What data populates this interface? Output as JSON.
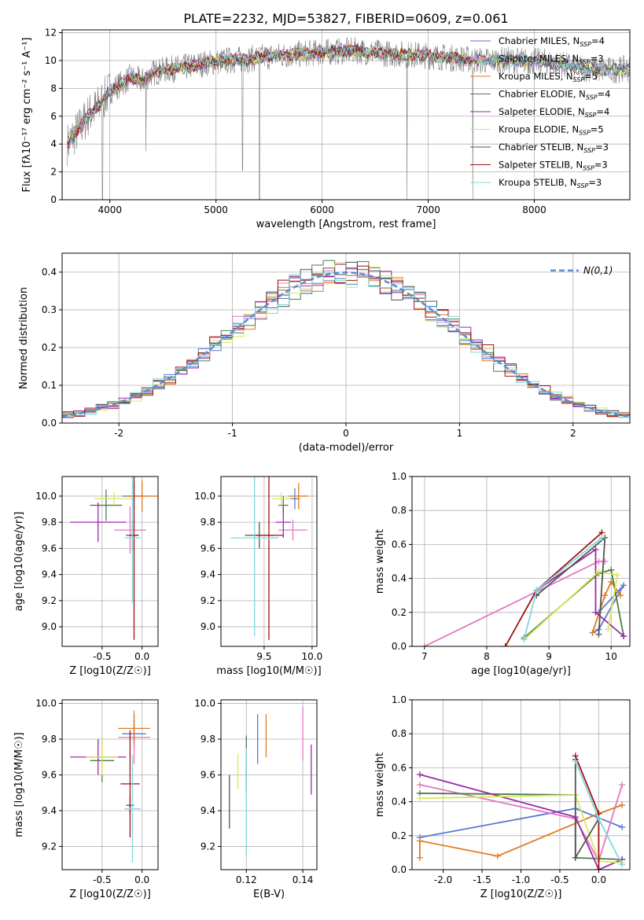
{
  "title": "PLATE=2232, MJD=53827, FIBERID=0609, z=0.061",
  "models": [
    {
      "name": "Chabrier MILES, N_SSP=4",
      "color": "#5b78d1"
    },
    {
      "name": "Salpeter MILES, N_SSP=3",
      "color": "#e377c2"
    },
    {
      "name": "Kroupa MILES, N_SSP=5",
      "color": "#e07b20"
    },
    {
      "name": "Chabrier ELODIE, N_SSP=4",
      "color": "#4d7a4d"
    },
    {
      "name": "Salpeter ELODIE, N_SSP=4",
      "color": "#9b2aa8"
    },
    {
      "name": "Kroupa ELODIE, N_SSP=5",
      "color": "#d8e85a"
    },
    {
      "name": "Chabrier STELIB, N_SSP=3",
      "color": "#555555"
    },
    {
      "name": "Salpeter STELIB, N_SSP=3",
      "color": "#a01010"
    },
    {
      "name": "Kroupa STELIB, N_SSP=3",
      "color": "#7fd8dc"
    }
  ],
  "chart_data": [
    {
      "id": "spectrum",
      "type": "line",
      "xlabel": "wavelength [Angstrom, rest frame]",
      "ylabel": "Flux [fλ10⁻¹⁷ erg cm⁻² s⁻¹ A⁻¹]",
      "xlim": [
        3550,
        8900
      ],
      "ylim": [
        0,
        12.2
      ],
      "xticks": [
        4000,
        5000,
        6000,
        7000,
        8000
      ],
      "yticks": [
        0,
        2,
        4,
        6,
        8,
        10,
        12
      ],
      "data_color": "#808080",
      "continuum": [
        [
          3600,
          4.0
        ],
        [
          3700,
          5.0
        ],
        [
          3800,
          6.1
        ],
        [
          3900,
          6.8
        ],
        [
          4000,
          7.8
        ],
        [
          4100,
          8.3
        ],
        [
          4200,
          8.8
        ],
        [
          4300,
          8.5
        ],
        [
          4400,
          9.1
        ],
        [
          4500,
          9.3
        ],
        [
          4700,
          9.5
        ],
        [
          4900,
          9.8
        ],
        [
          5100,
          10.0
        ],
        [
          5300,
          10.1
        ],
        [
          5500,
          10.3
        ],
        [
          5700,
          10.4
        ],
        [
          6000,
          10.6
        ],
        [
          6300,
          10.7
        ],
        [
          6600,
          10.5
        ],
        [
          6900,
          10.4
        ],
        [
          7200,
          10.2
        ],
        [
          7500,
          10.0
        ],
        [
          7800,
          10.0
        ],
        [
          8100,
          9.9
        ],
        [
          8400,
          9.5
        ],
        [
          8700,
          9.3
        ],
        [
          8900,
          9.4
        ]
      ],
      "drops": [
        [
          3930,
          0
        ],
        [
          4340,
          3.5
        ],
        [
          5250,
          2.1
        ],
        [
          5410,
          0
        ],
        [
          6800,
          0
        ],
        [
          7420,
          0
        ]
      ]
    },
    {
      "id": "residuals",
      "type": "area",
      "xlabel": "(data-model)/error",
      "ylabel": "Normed distribution",
      "xlim": [
        -2.5,
        2.5
      ],
      "ylim": [
        0,
        0.45
      ],
      "xticks": [
        -2,
        -1,
        0,
        1,
        2
      ],
      "yticks": [
        0,
        0.1,
        0.2,
        0.3,
        0.4
      ],
      "legend": "N(0,1)",
      "legend_location": "upper-right",
      "curve_color": "#5b8ad8",
      "bin_width": 0.1,
      "bin_start": -2.5
    },
    {
      "id": "age-vs-z",
      "type": "scatter",
      "xlabel": "Z [log10(Z/Z☉)]",
      "ylabel": "age [log10(age/yr)]",
      "xlim": [
        -1.0,
        0.2
      ],
      "ylim": [
        8.85,
        10.15
      ],
      "xticks": [
        -0.5,
        0.0
      ],
      "yticks": [
        9.0,
        9.2,
        9.4,
        9.6,
        9.8,
        10.0
      ],
      "points": [
        {
          "m": 0,
          "x": -0.1,
          "y": 10.0,
          "xe": 0.15,
          "ye": 0.1
        },
        {
          "m": 1,
          "x": -0.15,
          "y": 9.74,
          "xe": 0.2,
          "ye": 0.18
        },
        {
          "m": 2,
          "x": 0.0,
          "y": 10.0,
          "xe": 0.2,
          "ye": 0.12
        },
        {
          "m": 3,
          "x": -0.45,
          "y": 9.93,
          "xe": 0.2,
          "ye": 0.12
        },
        {
          "m": 4,
          "x": -0.55,
          "y": 9.8,
          "xe": 0.35,
          "ye": 0.15
        },
        {
          "m": 5,
          "x": -0.35,
          "y": 9.98,
          "xe": 0.25,
          "ye": 0.05
        },
        {
          "m": 6,
          "x": -0.12,
          "y": 9.7,
          "xe": 0.08,
          "ye": 0.12
        },
        {
          "m": 7,
          "x": -0.1,
          "y": 9.7,
          "xe": 0.05,
          "ye": 0.8
        },
        {
          "m": 8,
          "x": -0.12,
          "y": 9.68,
          "xe": 0.1,
          "ye": 0.5
        }
      ]
    },
    {
      "id": "age-vs-mass",
      "type": "scatter",
      "xlabel": "mass [log10(M/M☉)]",
      "ylabel": "",
      "xlim": [
        9.05,
        10.05
      ],
      "ylim": [
        8.85,
        10.15
      ],
      "xticks": [
        9.5,
        10.0
      ],
      "yticks": [
        9.0,
        9.2,
        9.4,
        9.6,
        9.8,
        10.0
      ],
      "points": [
        {
          "m": 0,
          "x": 9.82,
          "y": 9.98,
          "xe": 0.05,
          "ye": 0.08
        },
        {
          "m": 1,
          "x": 9.8,
          "y": 9.74,
          "xe": 0.15,
          "ye": 0.08
        },
        {
          "m": 2,
          "x": 9.86,
          "y": 10.0,
          "xe": 0.1,
          "ye": 0.1
        },
        {
          "m": 3,
          "x": 9.7,
          "y": 9.93,
          "xe": 0.05,
          "ye": 0.07
        },
        {
          "m": 4,
          "x": 9.7,
          "y": 9.8,
          "xe": 0.08,
          "ye": 0.12
        },
        {
          "m": 5,
          "x": 9.68,
          "y": 9.98,
          "xe": 0.1,
          "ye": 0.05
        },
        {
          "m": 6,
          "x": 9.45,
          "y": 9.7,
          "xe": 0.15,
          "ye": 0.1
        },
        {
          "m": 7,
          "x": 9.55,
          "y": 9.7,
          "xe": 0.15,
          "ye": 0.8
        },
        {
          "m": 8,
          "x": 9.4,
          "y": 9.68,
          "xe": 0.25,
          "ye": 0.75
        }
      ]
    },
    {
      "id": "weight-vs-age",
      "type": "line",
      "xlabel": "age [log10(age/yr)]",
      "ylabel": "mass weight",
      "xlim": [
        6.8,
        10.3
      ],
      "ylim": [
        0,
        1
      ],
      "xticks": [
        7,
        8,
        9,
        10
      ],
      "yticks": [
        0,
        0.2,
        0.4,
        0.6,
        0.8,
        1.0
      ],
      "series": [
        {
          "m": 0,
          "pts": [
            [
              9.8,
              0.2
            ],
            [
              10.2,
              0.36
            ],
            [
              9.8,
              0.1
            ],
            [
              9.7,
              0.08
            ]
          ]
        },
        {
          "m": 1,
          "pts": [
            [
              7.0,
              0.0
            ],
            [
              9.8,
              0.5
            ],
            [
              9.9,
              0.5
            ]
          ]
        },
        {
          "m": 2,
          "pts": [
            [
              9.7,
              0.08
            ],
            [
              9.9,
              0.3
            ],
            [
              10.0,
              0.38
            ],
            [
              10.15,
              0.3
            ]
          ]
        },
        {
          "m": 3,
          "pts": [
            [
              8.6,
              0.05
            ],
            [
              9.8,
              0.43
            ],
            [
              10.0,
              0.45
            ],
            [
              10.2,
              0.06
            ]
          ]
        },
        {
          "m": 4,
          "pts": [
            [
              8.8,
              0.33
            ],
            [
              9.75,
              0.57
            ],
            [
              9.75,
              0.2
            ],
            [
              10.2,
              0.06
            ]
          ]
        },
        {
          "m": 5,
          "pts": [
            [
              8.6,
              0.04
            ],
            [
              9.8,
              0.44
            ],
            [
              10.1,
              0.42
            ],
            [
              9.95,
              0.1
            ]
          ]
        },
        {
          "m": 6,
          "pts": [
            [
              9.8,
              0.07
            ],
            [
              9.9,
              0.64
            ],
            [
              8.8,
              0.3
            ]
          ]
        },
        {
          "m": 7,
          "pts": [
            [
              8.3,
              0.0
            ],
            [
              8.8,
              0.33
            ],
            [
              9.85,
              0.67
            ]
          ]
        },
        {
          "m": 8,
          "pts": [
            [
              8.6,
              0.04
            ],
            [
              8.8,
              0.33
            ],
            [
              9.85,
              0.64
            ]
          ]
        }
      ]
    },
    {
      "id": "mass-vs-z",
      "type": "scatter",
      "xlabel": "Z [log10(Z/Z☉)]",
      "ylabel": "mass [log10(M/M☉)]",
      "xlim": [
        -1.0,
        0.2
      ],
      "ylim": [
        9.07,
        10.02
      ],
      "xticks": [
        -0.5,
        0.0
      ],
      "yticks": [
        9.2,
        9.4,
        9.6,
        9.8,
        10.0
      ],
      "points": [
        {
          "m": 0,
          "x": -0.1,
          "y": 9.83,
          "xe": 0.15,
          "ye": 0.08
        },
        {
          "m": 1,
          "x": -0.1,
          "y": 9.81,
          "xe": 0.2,
          "ye": 0.15
        },
        {
          "m": 2,
          "x": -0.1,
          "y": 9.86,
          "xe": 0.2,
          "ye": 0.08
        },
        {
          "m": 3,
          "x": -0.5,
          "y": 9.68,
          "xe": 0.15,
          "ye": 0.12
        },
        {
          "m": 4,
          "x": -0.55,
          "y": 9.7,
          "xe": 0.35,
          "ye": 0.1
        },
        {
          "m": 5,
          "x": -0.5,
          "y": 9.7,
          "xe": 0.2,
          "ye": 0.1
        },
        {
          "m": 6,
          "x": -0.15,
          "y": 9.43,
          "xe": 0.05,
          "ye": 0.05
        },
        {
          "m": 7,
          "x": -0.15,
          "y": 9.55,
          "xe": 0.12,
          "ye": 0.3
        },
        {
          "m": 8,
          "x": -0.12,
          "y": 9.41,
          "xe": 0.1,
          "ye": 0.3
        }
      ]
    },
    {
      "id": "mass-vs-ebv",
      "type": "scatter",
      "xlabel": "E(B-V)",
      "ylabel": "",
      "xlim": [
        0.111,
        0.145
      ],
      "ylim": [
        9.07,
        10.02
      ],
      "xticks": [
        0.12,
        0.14
      ],
      "yticks": [
        9.2,
        9.4,
        9.6,
        9.8,
        10.0
      ],
      "points": [
        {
          "m": 0,
          "x": 0.124,
          "y": 9.8,
          "ye": 0.14
        },
        {
          "m": 1,
          "x": 0.14,
          "y": 9.83,
          "ye": 0.15
        },
        {
          "m": 2,
          "x": 0.127,
          "y": 9.82,
          "ye": 0.12
        },
        {
          "m": 3,
          "x": 0.12,
          "y": 9.7,
          "ye": 0.12
        },
        {
          "m": 4,
          "x": 0.143,
          "y": 9.63,
          "ye": 0.14
        },
        {
          "m": 5,
          "x": 0.117,
          "y": 9.62,
          "ye": 0.1
        },
        {
          "m": 6,
          "x": 0.114,
          "y": 9.45,
          "ye": 0.15
        },
        {
          "m": 7,
          "x": 0.12,
          "y": 9.58,
          "ye": 0.07
        },
        {
          "m": 8,
          "x": 0.12,
          "y": 9.45,
          "ye": 0.3
        }
      ]
    },
    {
      "id": "weight-vs-z",
      "type": "line",
      "xlabel": "Z [log10(Z/Z☉)]",
      "ylabel": "mass weight",
      "xlim": [
        -2.4,
        0.4
      ],
      "ylim": [
        0,
        1
      ],
      "xticks": [
        -2.0,
        -1.5,
        -1.0,
        -0.5,
        0.0
      ],
      "yticks": [
        0,
        0.2,
        0.4,
        0.6,
        0.8,
        1.0
      ],
      "series": [
        {
          "m": 0,
          "pts": [
            [
              -2.3,
              0.19
            ],
            [
              -0.3,
              0.36
            ],
            [
              0.3,
              0.25
            ]
          ]
        },
        {
          "m": 1,
          "pts": [
            [
              -2.3,
              0.5
            ],
            [
              -0.3,
              0.3
            ],
            [
              0.0,
              0.05
            ],
            [
              0.3,
              0.5
            ]
          ]
        },
        {
          "m": 2,
          "pts": [
            [
              -2.3,
              0.07
            ],
            [
              -2.3,
              0.17
            ],
            [
              -1.3,
              0.08
            ],
            [
              0.0,
              0.33
            ],
            [
              0.3,
              0.38
            ]
          ]
        },
        {
          "m": 3,
          "pts": [
            [
              -2.3,
              0.45
            ],
            [
              -0.3,
              0.44
            ],
            [
              -0.3,
              0.07
            ],
            [
              0.3,
              0.06
            ]
          ]
        },
        {
          "m": 4,
          "pts": [
            [
              -2.3,
              0.56
            ],
            [
              -0.3,
              0.31
            ],
            [
              0.0,
              0.0
            ],
            [
              0.3,
              0.06
            ]
          ]
        },
        {
          "m": 5,
          "pts": [
            [
              -2.3,
              0.42
            ],
            [
              -0.3,
              0.44
            ],
            [
              0.0,
              0.05
            ],
            [
              0.3,
              0.04
            ]
          ]
        },
        {
          "m": 6,
          "pts": [
            [
              -0.3,
              0.65
            ],
            [
              -0.3,
              0.07
            ],
            [
              0.0,
              0.3
            ]
          ]
        },
        {
          "m": 7,
          "pts": [
            [
              -0.3,
              0.67
            ],
            [
              0.0,
              0.33
            ],
            [
              0.0,
              0.0
            ]
          ]
        },
        {
          "m": 8,
          "pts": [
            [
              -0.3,
              0.64
            ],
            [
              0.0,
              0.3
            ],
            [
              0.3,
              0.03
            ]
          ]
        }
      ]
    }
  ]
}
